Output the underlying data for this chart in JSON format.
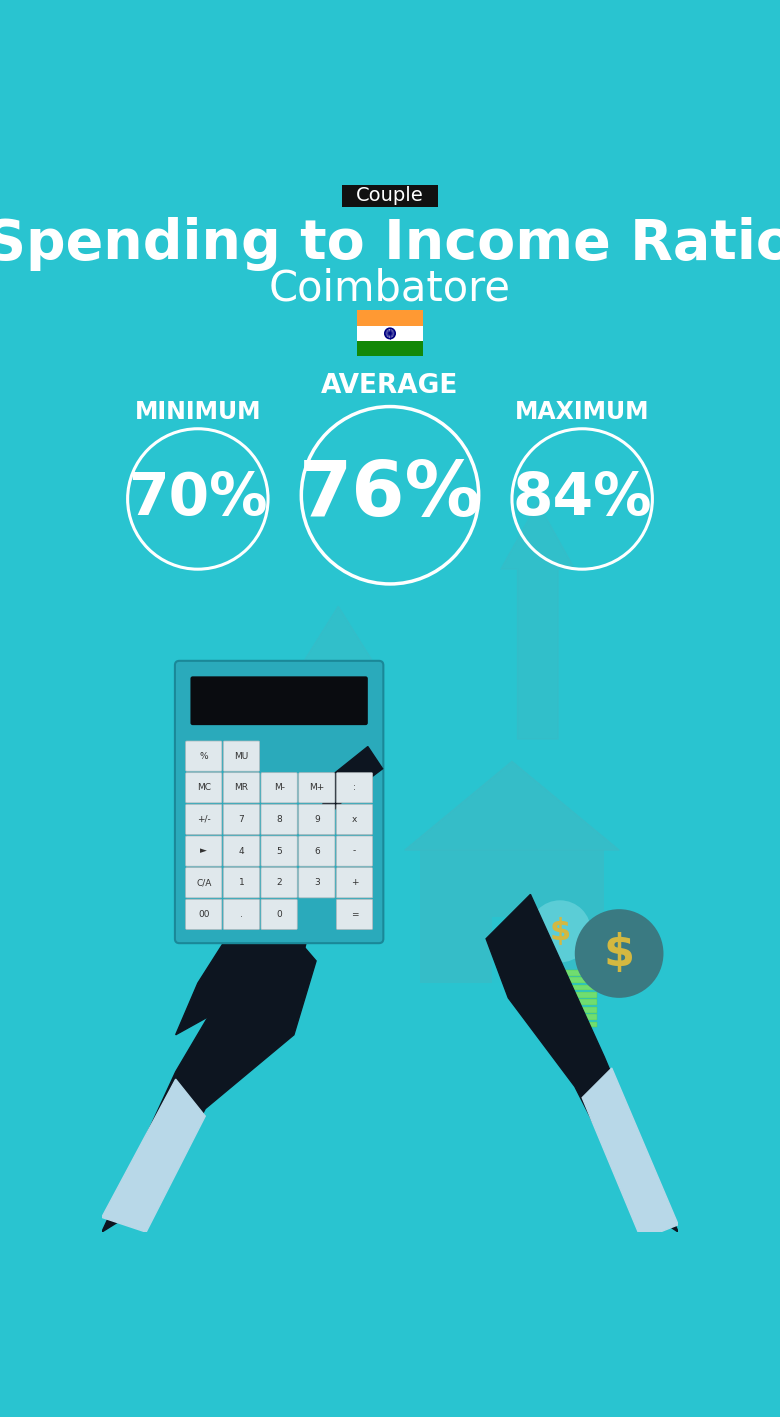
{
  "title": "Spending to Income Ratio",
  "subtitle": "Coimbatore",
  "tag": "Couple",
  "bg_color": "#29C4D0",
  "tag_bg": "#111111",
  "tag_text_color": "#ffffff",
  "title_color": "#ffffff",
  "subtitle_color": "#ffffff",
  "min_label": "MINIMUM",
  "avg_label": "AVERAGE",
  "max_label": "MAXIMUM",
  "min_value": "70%",
  "avg_value": "76%",
  "max_value": "84%",
  "circle_color": "#ffffff",
  "circle_text_color": "#ffffff",
  "label_color": "#ffffff",
  "flag_orange": "#FF9933",
  "flag_white": "#ffffff",
  "flag_green": "#138808",
  "flag_chakra": "#000080",
  "arrow_color": "#3ABBC6",
  "house_color": "#3ABBC6",
  "calc_body": "#2AAABB",
  "calc_screen": "#0A0C10",
  "btn_color": "#D8E4E8",
  "btn_text": "#333333",
  "hand_color": "#0D1520",
  "cuff_color": "#B8D8E8",
  "bag1_color": "#5BCDD6",
  "bag2_color": "#3A7A82",
  "money_color": "#70DD70",
  "dollar_color": "#D4B840",
  "figsize": [
    7.8,
    14.17
  ],
  "dpi": 100
}
